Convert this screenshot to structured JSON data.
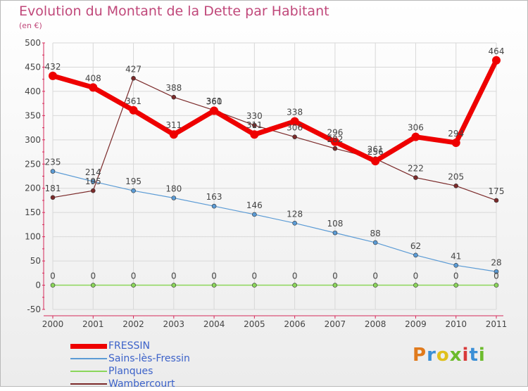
{
  "title": "Evolution du Montant de la Dette par Habitant",
  "subtitle": "(en €)",
  "logo_text": "Proxiti",
  "logo_colors": [
    "#e07a1c",
    "#3b8fd6",
    "#e0c01c",
    "#6cbb2c",
    "#d83a3a",
    "#3b8fd6",
    "#6cbb2c"
  ],
  "chart_data": {
    "type": "line",
    "x": [
      "2000",
      "2001",
      "2002",
      "2003",
      "2004",
      "2005",
      "2006",
      "2007",
      "2008",
      "2009",
      "2010",
      "2011"
    ],
    "ylim": [
      -50,
      500
    ],
    "yticks": [
      -50,
      0,
      50,
      100,
      150,
      200,
      250,
      300,
      350,
      400,
      450,
      500
    ],
    "grid": true,
    "legend": "bottom-left",
    "series": [
      {
        "name": "FRESSIN",
        "color": "#ee0000",
        "values": [
          432,
          408,
          361,
          311,
          360,
          311,
          338,
          296,
          256,
          306,
          294,
          464
        ],
        "labels": [
          "432",
          "408",
          "361",
          "311",
          "360",
          "311",
          "338",
          "296",
          "256",
          "306",
          "294",
          "464"
        ]
      },
      {
        "name": "Sains-lès-Fressin",
        "color": "#5b9bd5",
        "values": [
          235,
          214,
          195,
          180,
          163,
          146,
          128,
          108,
          88,
          62,
          41,
          28
        ],
        "labels": [
          "235",
          "214",
          "195",
          "180",
          "163",
          "146",
          "128",
          "108",
          "88",
          "62",
          "41",
          "28"
        ]
      },
      {
        "name": "Planques",
        "color": "#8bd65a",
        "values": [
          0,
          0,
          0,
          0,
          0,
          0,
          0,
          0,
          0,
          0,
          0,
          0
        ],
        "labels": [
          "0",
          "0",
          "0",
          "0",
          "0",
          "0",
          "0",
          "0",
          "0",
          "0",
          "0",
          "0"
        ]
      },
      {
        "name": "Wambercourt",
        "color": "#7b2a2a",
        "values": [
          181,
          195,
          427,
          388,
          361,
          330,
          306,
          282,
          261,
          222,
          205,
          175
        ],
        "labels": [
          "181",
          "195",
          "427",
          "388",
          "361",
          "330",
          "306",
          "282",
          "261",
          "222",
          "205",
          "175"
        ]
      }
    ]
  }
}
